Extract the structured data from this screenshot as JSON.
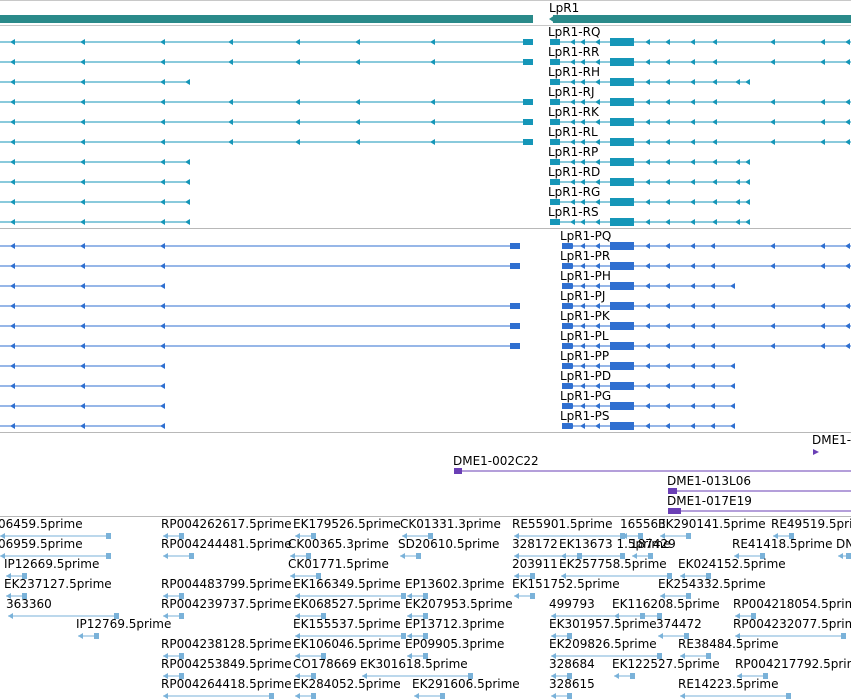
{
  "colors": {
    "gene": "#2a8a8a",
    "transcript_rna": "#1596b8",
    "transcript_protein": "#2f6fd0",
    "clone": "#6a3fb5",
    "est": "#7ab2d9",
    "divider": "#b8b8b8",
    "text": "#000000"
  },
  "gene": {
    "label": "LpR1"
  },
  "rna_transcripts": [
    "LpR1-RQ",
    "LpR1-RR",
    "LpR1-RH",
    "LpR1-RJ",
    "LpR1-RK",
    "LpR1-RL",
    "LpR1-RP",
    "LpR1-RD",
    "LpR1-RG",
    "LpR1-RS"
  ],
  "protein_transcripts": [
    "LpR1-PQ",
    "LpR1-PR",
    "LpR1-PH",
    "LpR1-PJ",
    "LpR1-PK",
    "LpR1-PL",
    "LpR1-PP",
    "LpR1-PD",
    "LpR1-PG",
    "LpR1-PS"
  ],
  "clones": [
    "DME1-",
    "DME1-002C22",
    "DME1-013L06",
    "DME1-017E19"
  ],
  "ests": [
    "06459.5prime",
    "RP004262617.5prime",
    "EK179526.5prime",
    "CK01331.3prime",
    "RE55901.5prime",
    "165563",
    "EK290141.5prime",
    "RE49519.5prime",
    "06959.5prime",
    "RP004244481.5prime",
    "CK00365.3prime",
    "SD20610.5prime",
    "328172",
    "EK13673 1.5prime",
    "187429",
    "RE41418.5prime",
    "DN",
    "IP12669.5prime",
    "CK01771.5prime",
    "203911",
    "EK257758.5prime",
    "EK024152.5prime",
    "EK237127.5prime",
    "RP004483799.5prime",
    "EK166349.5prime",
    "EP13602.3prime",
    "EK151752.5prime",
    "EK254332.5prime",
    "363360",
    "RP004239737.5prime",
    "EK068527.5prime",
    "EK207953.5prime",
    "499793",
    "EK116208.5prime",
    "RP004218054.5prime",
    "IP12769.5prime",
    "EK155537.5prime",
    "EP13712.3prime",
    "EK301957.5prime",
    "374472",
    "RP004232077.5prime",
    "RP004238128.5prime",
    "EK106046.5prime",
    "EP09905.3prime",
    "EK209826.5prime",
    "RE38484.5prime",
    "RP004253849.5prime",
    "CO178669",
    "EK301618.5prime",
    "328684",
    "EK122527.5prime",
    "RP004217792.5prime",
    "RP004264418.5prime",
    "EK284052.5prime",
    "EK291606.5prime",
    "328615",
    "RE14223.5prime"
  ]
}
